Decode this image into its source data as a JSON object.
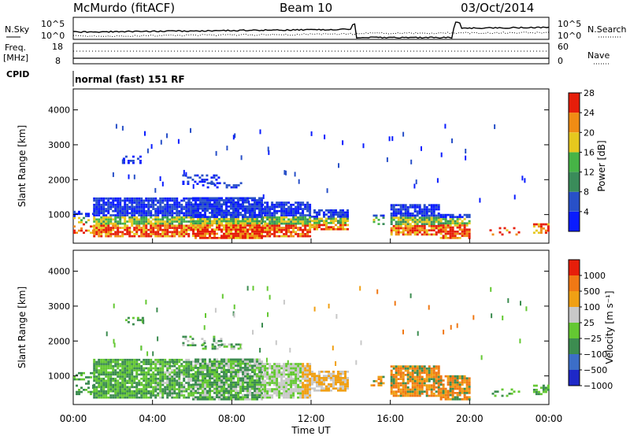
{
  "header": {
    "station": "McMurdo (fitACF)",
    "beam": "Beam 10",
    "date": "03/Oct/2014"
  },
  "chart_data": [
    {
      "type": "line",
      "name": "noise-panel",
      "left_label": "N.Sky",
      "right_label": "N.Search",
      "left_ticks": [
        "10^5",
        "10^0"
      ],
      "right_ticks": [
        "10^5",
        "10^0"
      ],
      "x_range_hours": [
        0,
        24
      ]
    },
    {
      "type": "line",
      "name": "freq-nave-panel",
      "left_label_1": "Freq.",
      "left_label_2": "[MHz]",
      "left_ticks": [
        "18",
        "8"
      ],
      "right_label": "Nave",
      "right_ticks": [
        "60",
        "0"
      ]
    },
    {
      "type": "table",
      "name": "cpid-strip",
      "label": "CPID",
      "text": "normal (fast) 151 RF"
    },
    {
      "type": "heatmap",
      "name": "power-panel",
      "ylabel": "Slant Range [km]",
      "yticks": [
        "1000",
        "2000",
        "3000",
        "4000"
      ],
      "ylim": [
        180,
        4600
      ],
      "colorbar_label": "Power [dB]",
      "colorbar_ticks": [
        "4",
        "8",
        "12",
        "16",
        "20",
        "24",
        "28"
      ],
      "colors": [
        "#0a1cff",
        "#2850c8",
        "#3a8c5a",
        "#46b446",
        "#e6c81e",
        "#f08c14",
        "#e61e0a"
      ]
    },
    {
      "type": "heatmap",
      "name": "velocity-panel",
      "ylabel": "Slant Range [km]",
      "yticks": [
        "1000",
        "2000",
        "3000",
        "4000"
      ],
      "ylim": [
        180,
        4600
      ],
      "colorbar_label": "Velocity [m s⁻¹]",
      "colorbar_ticks": [
        "1000",
        "500",
        "100",
        "25",
        "−25",
        "−100",
        "−500",
        "−1000"
      ],
      "colors": [
        "#1e28c8",
        "#3c6ec8",
        "#3c8c50",
        "#64c832",
        "#c8c8c8",
        "#f0a014",
        "#f07814",
        "#e61e0a"
      ],
      "xlabel": "Time UT",
      "xticks": [
        "00:00",
        "04:00",
        "08:00",
        "12:00",
        "16:00",
        "20:00",
        "00:00"
      ],
      "xlim_hours": [
        0,
        24
      ]
    }
  ]
}
